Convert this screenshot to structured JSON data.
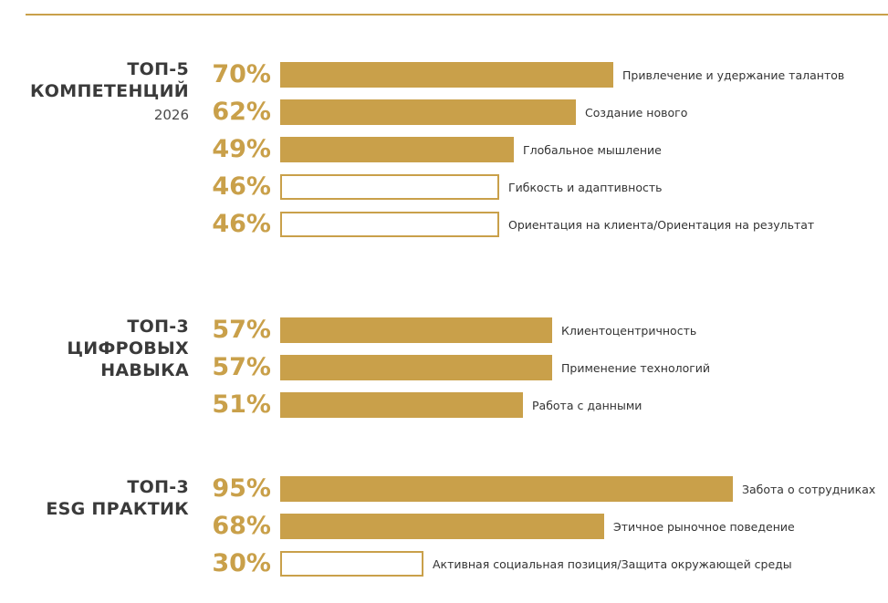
{
  "colors": {
    "accent": "#c9a04a",
    "text": "#333333",
    "title": "#3a3a3a"
  },
  "groups": [
    {
      "title_lines": [
        "ТОП-5",
        "КОМПЕТЕНЦИЙ"
      ],
      "subtitle": "2026"
    },
    {
      "title_lines": [
        "ТОП-3",
        "ЦИФРОВЫХ",
        "НАВЫКА"
      ]
    },
    {
      "title_lines": [
        "ТОП-3",
        "ESG ПРАКТИК"
      ]
    }
  ],
  "chart_data": [
    {
      "type": "bar",
      "orientation": "horizontal",
      "title": "ТОП-5 КОМПЕТЕНЦИЙ 2026",
      "categories": [
        "Привлечение и удержание талантов",
        "Создание нового",
        "Глобальное мышление",
        "Гибкость и адаптивность",
        "Ориентация на клиента/Ориентация на результат"
      ],
      "values": [
        70,
        62,
        49,
        46,
        46
      ],
      "value_labels": [
        "70%",
        "62%",
        "49%",
        "46%",
        "46%"
      ],
      "bar_style": [
        "filled",
        "filled",
        "filled",
        "outline",
        "outline"
      ],
      "xlim": [
        0,
        100
      ]
    },
    {
      "type": "bar",
      "orientation": "horizontal",
      "title": "ТОП-3 ЦИФРОВЫХ НАВЫКА",
      "categories": [
        "Клиентоцентричность",
        "Применение технологий",
        "Работа с данными"
      ],
      "values": [
        57,
        57,
        51
      ],
      "value_labels": [
        "57%",
        "57%",
        "51%"
      ],
      "bar_style": [
        "filled",
        "filled",
        "filled"
      ],
      "xlim": [
        0,
        100
      ]
    },
    {
      "type": "bar",
      "orientation": "horizontal",
      "title": "ТОП-3 ESG ПРАКТИК",
      "categories": [
        "Забота о сотрудниках",
        "Этичное рыночное поведение",
        "Активная социальная позиция/Защита окружающей среды"
      ],
      "values": [
        95,
        68,
        30
      ],
      "value_labels": [
        "95%",
        "68%",
        "30%"
      ],
      "bar_style": [
        "filled",
        "filled",
        "outline"
      ],
      "xlim": [
        0,
        100
      ]
    }
  ]
}
